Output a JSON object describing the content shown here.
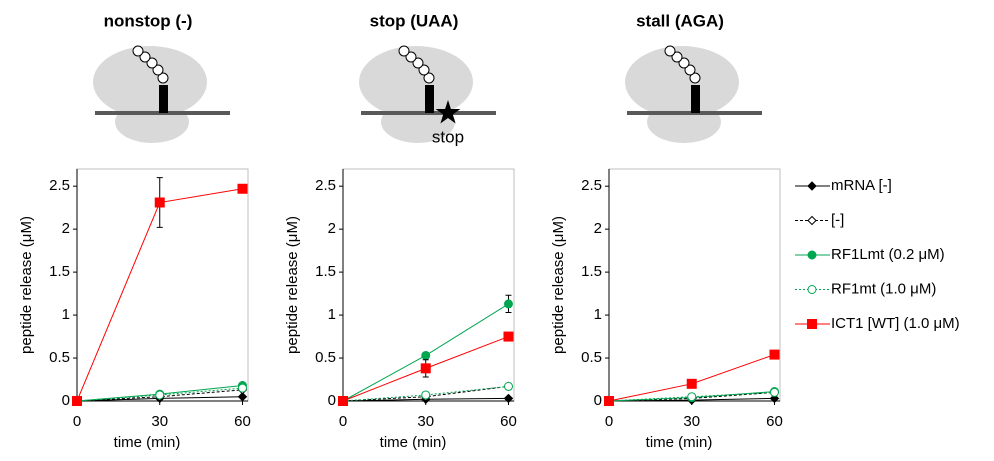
{
  "chart_data": [
    {
      "type": "line",
      "title": "nonstop (-)",
      "x_label": "time (min)",
      "y_label": "peptide release (μM)",
      "x": [
        0,
        30,
        60
      ],
      "xlim": [
        0,
        62
      ],
      "xticks": [
        0,
        30,
        60
      ],
      "ylim": [
        0,
        2.7
      ],
      "yticks": [
        0,
        0.5,
        1,
        1.5,
        2,
        2.5
      ],
      "legend": "right",
      "series": [
        {
          "name": "mRNA [-]",
          "color": "#000000",
          "marker": "diamond",
          "filled": true,
          "dash": "none",
          "values": [
            0,
            0.03,
            0.05
          ]
        },
        {
          "name": "[-]",
          "color": "#000000",
          "marker": "diamond",
          "filled": false,
          "dash": "3,2",
          "values": [
            0,
            0.05,
            0.13
          ]
        },
        {
          "name": "RF1Lmt (0.2 μM)",
          "color": "#00a650",
          "marker": "circle",
          "filled": true,
          "dash": "none",
          "values": [
            0,
            0.08,
            0.18
          ]
        },
        {
          "name": "RF1mt (1.0 μM)",
          "color": "#00a650",
          "marker": "circle",
          "filled": false,
          "dash": "2,2",
          "values": [
            0,
            0.07,
            0.15
          ]
        },
        {
          "name": "ICT1 [WT] (1.0 μM)",
          "color": "#ff0000",
          "marker": "square",
          "filled": true,
          "dash": "none",
          "values": [
            0,
            2.31,
            2.47
          ],
          "errors": [
            null,
            0.29,
            null
          ]
        }
      ]
    },
    {
      "type": "line",
      "title": "stop (UAA)",
      "annotation": "stop",
      "x_label": "time (min)",
      "y_label": "peptide release (μM)",
      "x": [
        0,
        30,
        60
      ],
      "xlim": [
        0,
        62
      ],
      "xticks": [
        0,
        30,
        60
      ],
      "ylim": [
        0,
        2.7
      ],
      "yticks": [
        0,
        0.5,
        1,
        1.5,
        2,
        2.5
      ],
      "series": [
        {
          "color": "#000000",
          "marker": "diamond",
          "filled": true,
          "dash": "none",
          "values": [
            0,
            0.02,
            0.03
          ]
        },
        {
          "color": "#000000",
          "marker": "diamond",
          "filled": false,
          "dash": "3,2",
          "values": [
            0,
            0.05,
            0.17
          ]
        },
        {
          "color": "#00a650",
          "marker": "circle",
          "filled": true,
          "dash": "none",
          "values": [
            0,
            0.53,
            1.13
          ],
          "errors": [
            null,
            0.03,
            0.1
          ]
        },
        {
          "color": "#00a650",
          "marker": "circle",
          "filled": false,
          "dash": "2,2",
          "values": [
            0,
            0.07,
            0.17
          ]
        },
        {
          "color": "#ff0000",
          "marker": "square",
          "filled": true,
          "dash": "none",
          "values": [
            0,
            0.38,
            0.75
          ],
          "errors": [
            null,
            0.1,
            null
          ]
        }
      ]
    },
    {
      "type": "line",
      "title": "stall (AGA)",
      "x_label": "time (min)",
      "y_label": "peptide release (μM)",
      "x": [
        0,
        30,
        60
      ],
      "xlim": [
        0,
        62
      ],
      "xticks": [
        0,
        30,
        60
      ],
      "ylim": [
        0,
        2.7
      ],
      "yticks": [
        0,
        0.5,
        1,
        1.5,
        2,
        2.5
      ],
      "series": [
        {
          "color": "#000000",
          "marker": "diamond",
          "filled": true,
          "dash": "none",
          "values": [
            0,
            0.01,
            0.03
          ]
        },
        {
          "color": "#000000",
          "marker": "diamond",
          "filled": false,
          "dash": "3,2",
          "values": [
            0,
            0.03,
            0.1
          ]
        },
        {
          "color": "#00a650",
          "marker": "circle",
          "filled": true,
          "dash": "none",
          "values": [
            0,
            0.04,
            0.11
          ]
        },
        {
          "color": "#00a650",
          "marker": "circle",
          "filled": false,
          "dash": "2,2",
          "values": [
            0,
            0.05,
            0.1
          ]
        },
        {
          "color": "#ff0000",
          "marker": "square",
          "filled": true,
          "dash": "none",
          "values": [
            0,
            0.2,
            0.54
          ]
        }
      ]
    }
  ]
}
